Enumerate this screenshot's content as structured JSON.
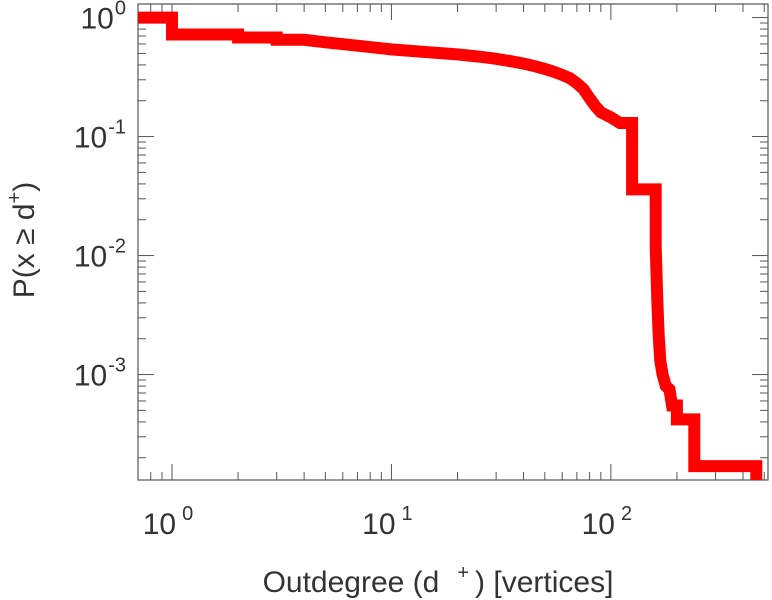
{
  "chart_data": {
    "type": "line",
    "xscale": "log",
    "yscale": "log",
    "xlim": [
      0.7,
      520
    ],
    "ylim": [
      0.00013,
      1.3
    ],
    "xlabel": {
      "base": "Outdegree (d",
      "sup": "+",
      "tail": ") [vertices]"
    },
    "ylabel": {
      "base": "P(x ≥ d",
      "sup": "+",
      "tail": ")"
    },
    "x_ticks": [
      {
        "value": 1,
        "base": "10",
        "exp": "0"
      },
      {
        "value": 10,
        "base": "10",
        "exp": "1"
      },
      {
        "value": 100,
        "base": "10",
        "exp": "2"
      }
    ],
    "y_ticks": [
      {
        "value": 1,
        "base": "10",
        "exp": "0"
      },
      {
        "value": 0.1,
        "base": "10",
        "exp": "-1"
      },
      {
        "value": 0.01,
        "base": "10",
        "exp": "-2"
      },
      {
        "value": 0.001,
        "base": "10",
        "exp": "-3"
      }
    ],
    "grid": false,
    "series": [
      {
        "color": "#ff0000",
        "step": true,
        "points": [
          [
            0.7,
            1.0
          ],
          [
            1,
            1.0
          ],
          [
            1,
            0.72
          ],
          [
            2,
            0.72
          ],
          [
            2,
            0.68
          ],
          [
            3,
            0.68
          ],
          [
            3,
            0.65
          ],
          [
            4,
            0.65
          ],
          [
            5,
            0.62
          ],
          [
            7,
            0.58
          ],
          [
            10,
            0.54
          ],
          [
            15,
            0.51
          ],
          [
            20,
            0.49
          ],
          [
            25,
            0.47
          ],
          [
            30,
            0.45
          ],
          [
            35,
            0.43
          ],
          [
            40,
            0.41
          ],
          [
            45,
            0.39
          ],
          [
            50,
            0.37
          ],
          [
            55,
            0.35
          ],
          [
            60,
            0.33
          ],
          [
            65,
            0.31
          ],
          [
            70,
            0.28
          ],
          [
            75,
            0.25
          ],
          [
            80,
            0.21
          ],
          [
            85,
            0.18
          ],
          [
            90,
            0.16
          ],
          [
            100,
            0.145
          ],
          [
            110,
            0.13
          ],
          [
            125,
            0.13
          ],
          [
            125,
            0.036
          ],
          [
            160,
            0.036
          ],
          [
            160,
            0.012
          ],
          [
            163,
            0.004
          ],
          [
            165,
            0.0022
          ],
          [
            168,
            0.0013
          ],
          [
            172,
            0.001
          ],
          [
            178,
            0.0008
          ],
          [
            185,
            0.00075
          ],
          [
            190,
            0.00055
          ],
          [
            200,
            0.00055
          ],
          [
            200,
            0.00042
          ],
          [
            240,
            0.00042
          ],
          [
            240,
            0.00017
          ],
          [
            460,
            0.00017
          ],
          [
            460,
            0.00013
          ]
        ]
      }
    ]
  }
}
